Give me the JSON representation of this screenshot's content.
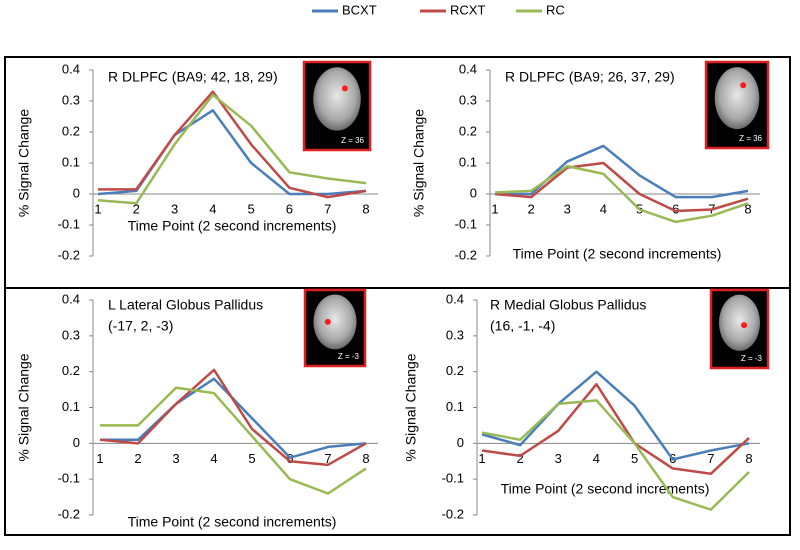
{
  "legend": [
    {
      "name": "BCXT",
      "color": "#4a7ebb"
    },
    {
      "name": "RCXT",
      "color": "#be4b48"
    },
    {
      "name": "RC",
      "color": "#98b954"
    }
  ],
  "chart_data": [
    {
      "type": "line",
      "title": [
        "R DLPFC (BA9; 42, 18, 29)"
      ],
      "inset_label": "Z = 36",
      "ylabel": "% Signal Change",
      "xlabel": "Time Point (2 second increments)",
      "categories": [
        "1",
        "2",
        "3",
        "4",
        "5",
        "6",
        "7",
        "8"
      ],
      "ylim": [
        -0.2,
        0.4
      ],
      "yticks": [
        0.4,
        0.3,
        0.2,
        0.1,
        0,
        -0.1,
        -0.2
      ],
      "series": [
        {
          "values": [
            0.0,
            0.01,
            0.19,
            0.27,
            0.1,
            0.0,
            0.0,
            0.01
          ]
        },
        {
          "values": [
            0.015,
            0.015,
            0.19,
            0.33,
            0.16,
            0.02,
            -0.01,
            0.01
          ]
        },
        {
          "values": [
            -0.02,
            -0.03,
            0.16,
            0.32,
            0.22,
            0.07,
            0.05,
            0.035
          ]
        }
      ]
    },
    {
      "type": "line",
      "title": [
        "R DLPFC (BA9; 26, 37, 29)"
      ],
      "inset_label": "Z = 36",
      "ylabel": "% Signal Change",
      "xlabel": "Time Point (2 second increments)",
      "categories": [
        "1",
        "2",
        "3",
        "4",
        "5",
        "6",
        "7",
        "8"
      ],
      "ylim": [
        -0.2,
        0.4
      ],
      "yticks": [
        0.4,
        0.3,
        0.2,
        0.1,
        0,
        -0.1,
        -0.2
      ],
      "series": [
        {
          "values": [
            0.0,
            0.0,
            0.105,
            0.155,
            0.06,
            -0.01,
            -0.01,
            0.01
          ]
        },
        {
          "values": [
            0.0,
            -0.01,
            0.085,
            0.1,
            0.0,
            -0.055,
            -0.05,
            -0.015
          ]
        },
        {
          "values": [
            0.005,
            0.01,
            0.09,
            0.065,
            -0.05,
            -0.09,
            -0.07,
            -0.03
          ]
        }
      ]
    },
    {
      "type": "line",
      "title": [
        "L Lateral Globus Pallidus",
        "(-17, 2, -3)"
      ],
      "inset_label": "Z = -3",
      "ylabel": "% Signal Change",
      "xlabel": "Time Point (2 second increments)",
      "categories": [
        "1",
        "2",
        "3",
        "4",
        "5",
        "6",
        "7",
        "8"
      ],
      "ylim": [
        -0.2,
        0.4
      ],
      "yticks": [
        0.4,
        0.3,
        0.2,
        0.1,
        0,
        -0.1,
        -0.2
      ],
      "series": [
        {
          "values": [
            0.01,
            0.01,
            0.11,
            0.18,
            0.07,
            -0.04,
            -0.01,
            0.0
          ]
        },
        {
          "values": [
            0.01,
            0.0,
            0.11,
            0.205,
            0.04,
            -0.05,
            -0.06,
            0.0
          ]
        },
        {
          "values": [
            0.05,
            0.05,
            0.155,
            0.14,
            0.02,
            -0.1,
            -0.14,
            -0.07
          ]
        }
      ]
    },
    {
      "type": "line",
      "title": [
        "R Medial Globus Pallidus",
        "(16, -1, -4)"
      ],
      "inset_label": "Z = -3",
      "ylabel": "% Signal Change",
      "xlabel": "Time Point (2 second increments)",
      "categories": [
        "1",
        "2",
        "3",
        "4",
        "5",
        "6",
        "7",
        "8"
      ],
      "ylim": [
        -0.2,
        0.4
      ],
      "yticks": [
        0.4,
        0.3,
        0.2,
        0.1,
        0,
        -0.1,
        -0.2
      ],
      "series": [
        {
          "values": [
            0.025,
            -0.005,
            0.11,
            0.2,
            0.105,
            -0.045,
            -0.02,
            0.0
          ]
        },
        {
          "values": [
            -0.02,
            -0.035,
            0.035,
            0.165,
            0.0,
            -0.07,
            -0.085,
            0.015
          ]
        },
        {
          "values": [
            0.03,
            0.01,
            0.11,
            0.12,
            0.0,
            -0.15,
            -0.185,
            -0.08
          ]
        }
      ]
    }
  ]
}
